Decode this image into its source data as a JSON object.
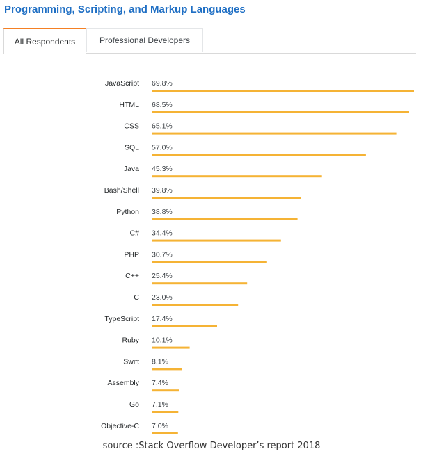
{
  "title": "Programming, Scripting, and Markup Languages",
  "tabs": [
    {
      "label": "All Respondents",
      "active": true
    },
    {
      "label": "Professional Developers",
      "active": false
    }
  ],
  "colors": {
    "bar": "#f5b335",
    "title": "#1f6fc4",
    "tab_accent": "#f48024"
  },
  "source": "source :Stack Overflow Developer’s report 2018",
  "chart_data": {
    "type": "bar",
    "orientation": "horizontal",
    "categories": [
      "JavaScript",
      "HTML",
      "CSS",
      "SQL",
      "Java",
      "Bash/Shell",
      "Python",
      "C#",
      "PHP",
      "C++",
      "C",
      "TypeScript",
      "Ruby",
      "Swift",
      "Assembly",
      "Go",
      "Objective-C"
    ],
    "values": [
      69.8,
      68.5,
      65.1,
      57.0,
      45.3,
      39.8,
      38.8,
      34.4,
      30.7,
      25.4,
      23.0,
      17.4,
      10.1,
      8.1,
      7.4,
      7.1,
      7.0
    ],
    "value_labels": [
      "69.8%",
      "68.5%",
      "65.1%",
      "57.0%",
      "45.3%",
      "39.8%",
      "38.8%",
      "34.4%",
      "30.7%",
      "25.4%",
      "23.0%",
      "17.4%",
      "10.1%",
      "8.1%",
      "7.4%",
      "7.1%",
      "7.0%"
    ],
    "title": "",
    "xlabel": "",
    "ylabel": "",
    "xlim": [
      0,
      69.8
    ],
    "grid": false
  }
}
